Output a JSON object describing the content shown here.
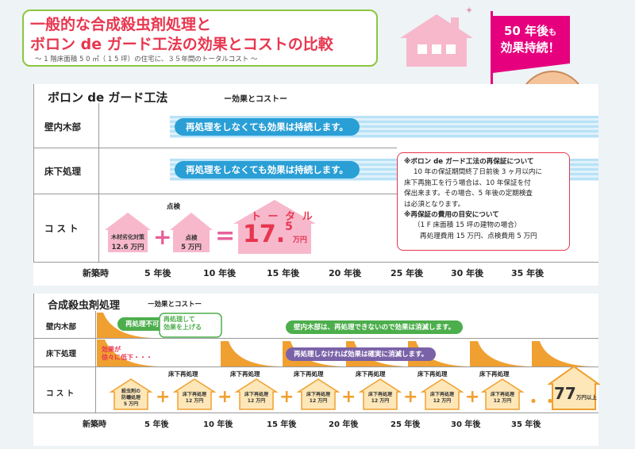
{
  "header": {
    "title_line1": "一般的な合成殺虫剤処理と",
    "title_line2": "ボロン de ガード工法の効果とコストの比較",
    "subtitle": "〜 1 階床面積 5 0 ㎡（ 1 5 坪）の住宅に、３５年間のトータルコスト 〜",
    "flag_line1": "50 年後",
    "flag_small": "も",
    "flag_line2": "効果持続！"
  },
  "boron": {
    "title": "ボロン de ガード工法",
    "sub": "ー効果とコストー",
    "row_wall": "壁内木部",
    "row_floor": "床下処理",
    "row_cost": "コ ス ト",
    "wall_msg": "再処理をしなくても効果は持続します。",
    "floor_msg": "再処理をしなくても効果は持続します。",
    "cost1_label": "木材劣化対策",
    "cost1_value": "12.6 万円",
    "check_label": "点検",
    "cost2_label": "点検",
    "cost2_value": "5 万円",
    "total_label": "ト ー タ ル",
    "total_main": "17.",
    "total_sup": "5",
    "total_unit": "万円",
    "note": {
      "h1": "※ボロン de ガード工法の再保証について",
      "l1": "10 年の保証期間終了日前後 3 ヶ月以内に",
      "l2": "床下再施工を行う場合は、10 年保証を付",
      "l3": "保出来ます。その場合、5 年後の定期検査",
      "l4": "は必須となります。",
      "h2": "※再保証の費用の目安について",
      "l5": "（1 F 床面積 15 坪の建物の場合）",
      "l6": "再処理費用 15 万円、点検費用 5 万円"
    },
    "axis": [
      "新築時",
      "5 年後",
      "10 年後",
      "15 年後",
      "20 年後",
      "25 年後",
      "30 年後",
      "35 年後"
    ]
  },
  "synthetic": {
    "title": "合成殺虫剤処理",
    "sub": "ー効果とコストー",
    "row_wall": "壁内木部",
    "row_floor": "床下処理",
    "row_cost": "コ ス ト",
    "pill_no_retreat": "再処理不可",
    "pill_retreat_up": "再処理して",
    "pill_retreat_up2": "効果を上げる",
    "effect_down1": "効果が",
    "effect_down2": "徐々に低下・・・",
    "wall_msg": "壁内木部は、再処理できないので効果は消滅します。",
    "floor_msg": "再処理しなければ効果は確実に消滅します。",
    "retreat_label": "床下再処理",
    "first_house_l1": "殺虫剤の",
    "first_house_l2": "防蟻処理",
    "first_house_v": "5 万円",
    "house_l1": "床下再処理",
    "house_v": "12 万円",
    "total_num": "77",
    "total_unit": "万円以上",
    "axis": [
      "新築時",
      "5 年後",
      "10 年後",
      "15 年後",
      "20 年後",
      "25 年後",
      "30 年後",
      "35 年後"
    ]
  },
  "colors": {
    "accent_red": "#e8364f",
    "pink": "#f7b8cc",
    "blue": "#2a9fd6",
    "green": "#4cae4c",
    "purple": "#7a62a8",
    "orange": "#f0a030"
  }
}
